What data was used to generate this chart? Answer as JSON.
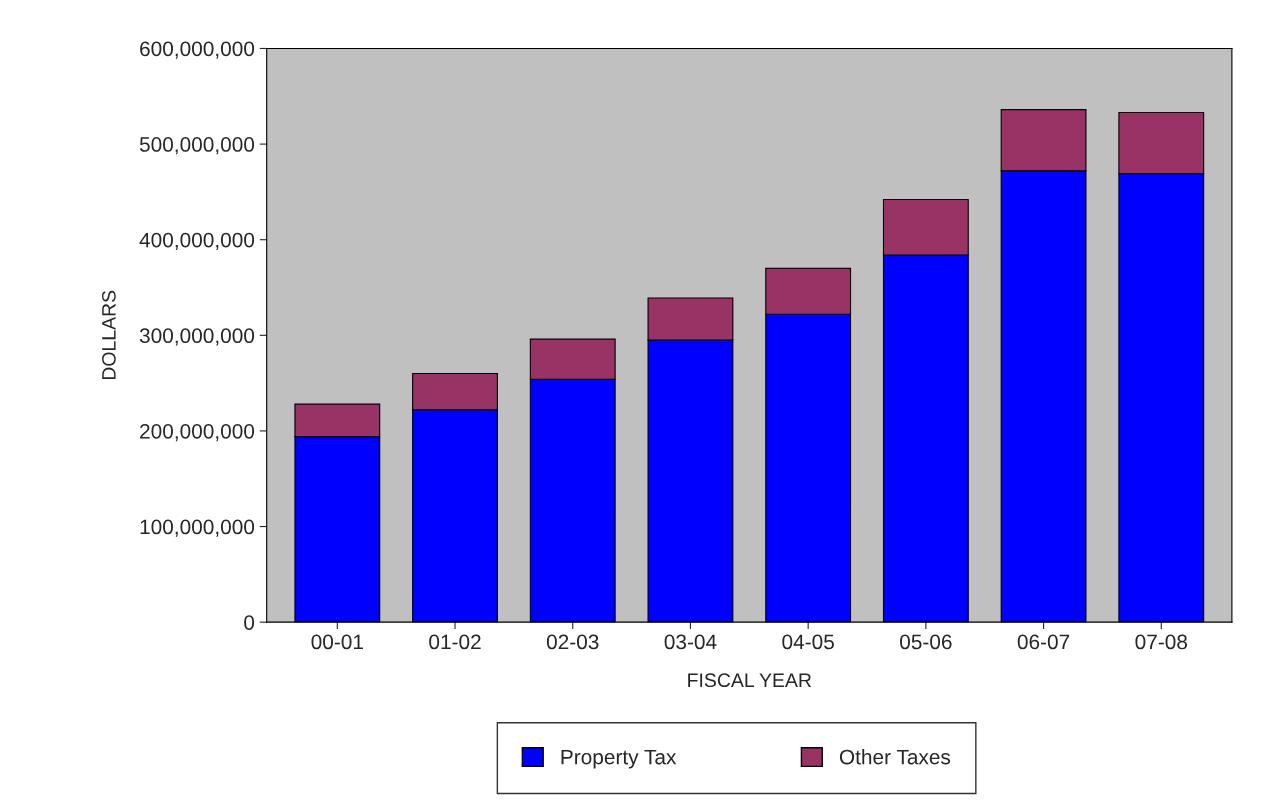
{
  "chart_data": {
    "type": "bar",
    "stacked": true,
    "xlabel": "FISCAL YEAR",
    "ylabel": "DOLLARS",
    "categories": [
      "00-01",
      "01-02",
      "02-03",
      "03-04",
      "04-05",
      "05-06",
      "06-07",
      "07-08"
    ],
    "series": [
      {
        "name": "Property Tax",
        "color": "#0000ff",
        "values": [
          194000000,
          222000000,
          254000000,
          295000000,
          322000000,
          384000000,
          472000000,
          469000000
        ]
      },
      {
        "name": "Other Taxes",
        "color": "#993366",
        "values": [
          34000000,
          38000000,
          42000000,
          44000000,
          48000000,
          58000000,
          64000000,
          64000000
        ]
      }
    ],
    "ylim": [
      0,
      600000000
    ],
    "yticks": [
      {
        "value": 0,
        "label": "0"
      },
      {
        "value": 100000000,
        "label": "100,000,000"
      },
      {
        "value": 200000000,
        "label": "200,000,000"
      },
      {
        "value": 300000000,
        "label": "300,000,000"
      },
      {
        "value": 400000000,
        "label": "400,000,000"
      },
      {
        "value": 500000000,
        "label": "500,000,000"
      },
      {
        "value": 600000000,
        "label": "600,000,000"
      }
    ],
    "grid": false,
    "legend": "bottom"
  }
}
